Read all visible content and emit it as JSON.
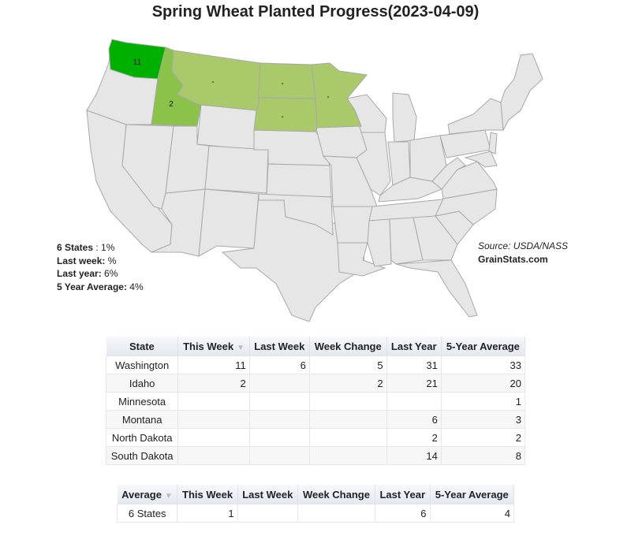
{
  "title": "Spring Wheat Planted Progress(2023-04-09)",
  "colors": {
    "default_state": "#e6e6e6",
    "border": "#a8a8a8",
    "high": "#00b000",
    "mid": "#8bc34a",
    "no_data": "#a9c96a"
  },
  "map": {
    "highlighted": [
      {
        "state": "Washington",
        "label": "11",
        "color": "#00b000"
      },
      {
        "state": "Idaho",
        "label": "2",
        "color": "#8bc34a"
      },
      {
        "state": "Montana",
        "label": "-",
        "color": "#a9c96a"
      },
      {
        "state": "North Dakota",
        "label": "-",
        "color": "#a9c96a"
      },
      {
        "state": "South Dakota",
        "label": "-",
        "color": "#a9c96a"
      },
      {
        "state": "Minnesota",
        "label": "-",
        "color": "#a9c96a"
      }
    ]
  },
  "summary": {
    "states_label": "6 States",
    "states_value": " : 1%",
    "last_week_label": "Last week:",
    "last_week_value": " %",
    "last_year_label": "Last year:",
    "last_year_value": " 6%",
    "avg_label": "5 Year Average:",
    "avg_value": " 4%"
  },
  "source": {
    "text": "Source: USDA/NASS",
    "site": "GrainStats.com"
  },
  "state_table": {
    "headers": [
      "State",
      "This Week",
      "Last Week",
      "Week Change",
      "Last Year",
      "5-Year Average"
    ],
    "sort_marker": "▼",
    "rows": [
      [
        "Washington",
        "11",
        "6",
        "5",
        "31",
        "33"
      ],
      [
        "Idaho",
        "2",
        "",
        "2",
        "21",
        "20"
      ],
      [
        "Minnesota",
        "",
        "",
        "",
        "",
        "1"
      ],
      [
        "Montana",
        "",
        "",
        "",
        "6",
        "3"
      ],
      [
        "North Dakota",
        "",
        "",
        "",
        "2",
        "2"
      ],
      [
        "South Dakota",
        "",
        "",
        "",
        "14",
        "8"
      ]
    ]
  },
  "avg_table": {
    "headers": [
      "Average",
      "This Week",
      "Last Week",
      "Week Change",
      "Last Year",
      "5-Year Average"
    ],
    "sort_marker": "▼",
    "rows": [
      [
        "6 States",
        "1",
        "",
        "",
        "6",
        "4"
      ]
    ]
  }
}
